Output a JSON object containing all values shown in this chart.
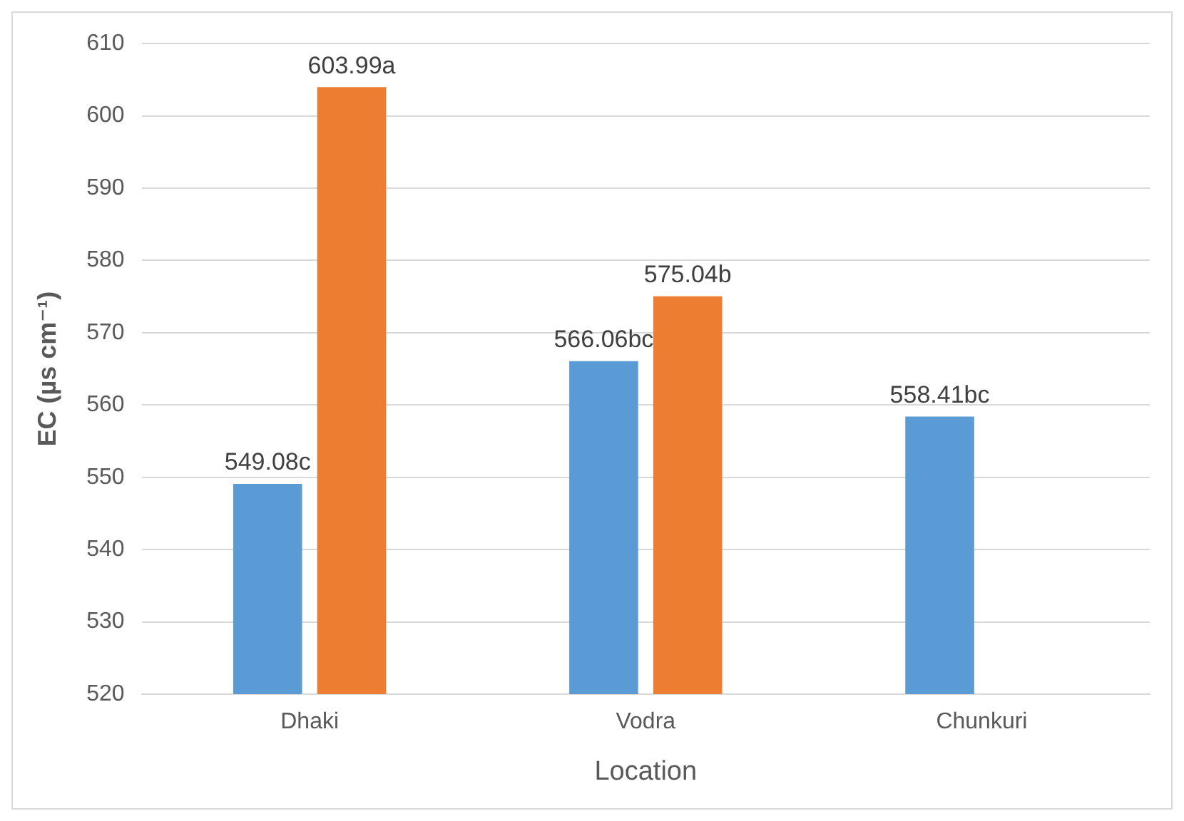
{
  "chart_data": {
    "type": "bar",
    "xlabel": "Location",
    "ylabel": "EC (µs cm⁻¹)",
    "categories": [
      "Dhaki",
      "Vodra",
      "Chunkuri"
    ],
    "series": [
      {
        "color": "#5b9bd5",
        "values": [
          549.08,
          566.06,
          558.41
        ],
        "value_labels": [
          "549.08c",
          "566.06bc",
          "558.41bc"
        ]
      },
      {
        "color": "#ed7d31",
        "values": [
          603.99,
          575.04,
          null
        ],
        "value_labels": [
          "603.99a",
          "575.04b",
          null
        ]
      }
    ],
    "ylim": [
      520,
      610
    ],
    "yticks": [
      520,
      530,
      540,
      550,
      560,
      570,
      580,
      590,
      600,
      610
    ],
    "grid": "y",
    "legend": false
  }
}
